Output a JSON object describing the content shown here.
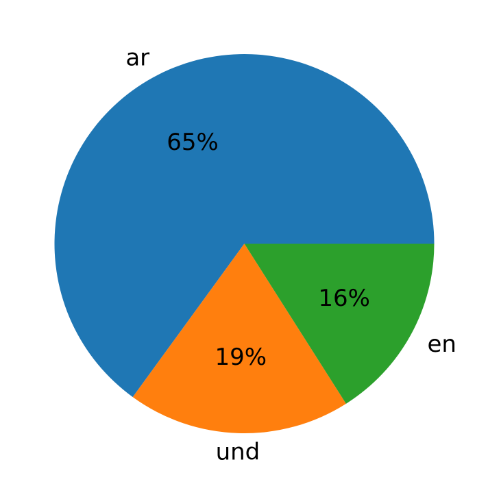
{
  "chart_data": {
    "type": "pie",
    "title": "",
    "slices": [
      {
        "label": "ar",
        "value": 65,
        "pct_label": "65%",
        "color": "#1f77b4"
      },
      {
        "label": "und",
        "value": 19,
        "pct_label": "19%",
        "color": "#ff7f0e"
      },
      {
        "label": "en",
        "value": 16,
        "pct_label": "16%",
        "color": "#2ca02c"
      }
    ],
    "start_angle_deg": 0,
    "direction": "counterclockwise"
  }
}
